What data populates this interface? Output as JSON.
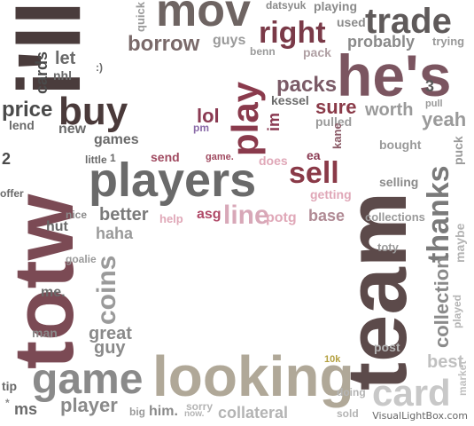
{
  "words": [
    {
      "id": "i-ll",
      "text": "i'll",
      "color": "#4a3c3c",
      "orientation": "vertical"
    },
    {
      "id": "totw",
      "text": "totw",
      "color": "#7b4a54",
      "orientation": "vertical"
    },
    {
      "id": "team",
      "text": "team",
      "color": "#5c4a4a",
      "orientation": "vertical"
    },
    {
      "id": "hes",
      "text": "he's",
      "color": "#7b5560",
      "orientation": "horizontal"
    },
    {
      "id": "mov",
      "text": "mov",
      "color": "#6e6462",
      "orientation": "horizontal"
    },
    {
      "id": "trade",
      "text": "trade",
      "color": "#5f5a5a",
      "orientation": "horizontal"
    },
    {
      "id": "right",
      "text": "right",
      "color": "#7a3a48",
      "orientation": "horizontal"
    },
    {
      "id": "borrow",
      "text": "borrow",
      "color": "#7a6a6a",
      "orientation": "horizontal"
    },
    {
      "id": "players",
      "text": "players",
      "color": "#6a6a6a",
      "orientation": "horizontal"
    },
    {
      "id": "looking",
      "text": "looking",
      "color": "#b0a898",
      "orientation": "horizontal"
    },
    {
      "id": "game",
      "text": "game",
      "color": "#8a8a8a",
      "orientation": "horizontal"
    },
    {
      "id": "card",
      "text": "card",
      "color": "#c8c8c8",
      "orientation": "horizontal"
    },
    {
      "id": "buy",
      "text": "buy",
      "color": "#4a3a3a",
      "orientation": "horizontal"
    },
    {
      "id": "price",
      "text": "price",
      "color": "#4a4a4a",
      "orientation": "horizontal"
    },
    {
      "id": "play",
      "text": "play",
      "color": "#8a3a4c",
      "orientation": "vertical"
    },
    {
      "id": "sell",
      "text": "sell",
      "color": "#8a3a48",
      "orientation": "horizontal"
    },
    {
      "id": "line",
      "text": "line",
      "color": "#d8a8b8",
      "orientation": "horizontal"
    },
    {
      "id": "thanks",
      "text": "thanks",
      "color": "#7a7a7a",
      "orientation": "vertical"
    },
    {
      "id": "coins",
      "text": "coins",
      "color": "#9a9a9a",
      "orientation": "vertical"
    },
    {
      "id": "collection",
      "text": "collection",
      "color": "#8a8a8a",
      "orientation": "vertical"
    },
    {
      "id": "packs",
      "text": "packs",
      "color": "#7a5a66",
      "orientation": "horizontal"
    },
    {
      "id": "sure",
      "text": "sure",
      "color": "#8a3a48",
      "orientation": "horizontal"
    },
    {
      "id": "worth",
      "text": "worth",
      "color": "#9a9a9a",
      "orientation": "horizontal"
    },
    {
      "id": "yeah",
      "text": "yeah",
      "color": "#9a9a9a",
      "orientation": "horizontal"
    },
    {
      "id": "probably",
      "text": "probably",
      "color": "#8a8a8a",
      "orientation": "horizontal"
    },
    {
      "id": "lol",
      "text": "lol",
      "color": "#8a3a52",
      "orientation": "horizontal"
    },
    {
      "id": "games",
      "text": "games",
      "color": "#6a6a6a",
      "orientation": "horizontal"
    },
    {
      "id": "better",
      "text": "better",
      "color": "#7a7a7a",
      "orientation": "horizontal"
    },
    {
      "id": "haha",
      "text": "haha",
      "color": "#9a9a9a",
      "orientation": "horizontal"
    },
    {
      "id": "great",
      "text": "great",
      "color": "#8a8a8a",
      "orientation": "horizontal"
    },
    {
      "id": "guy",
      "text": "guy",
      "color": "#8a8a8a",
      "orientation": "horizontal"
    },
    {
      "id": "player",
      "text": "player",
      "color": "#8a8a8a",
      "orientation": "horizontal"
    },
    {
      "id": "collateral",
      "text": "collateral",
      "color": "#b4b4b4",
      "orientation": "horizontal"
    },
    {
      "id": "best",
      "text": "best",
      "color": "#c0c0c0",
      "orientation": "horizontal"
    },
    {
      "id": "base",
      "text": "base",
      "color": "#b08a94",
      "orientation": "horizontal"
    },
    {
      "id": "potg",
      "text": "potg",
      "color": "#e0a8b8",
      "orientation": "horizontal"
    },
    {
      "id": "asg",
      "text": "asg",
      "color": "#b04a68",
      "orientation": "horizontal"
    },
    {
      "id": "cards",
      "text": "cards",
      "color": "#4a4a4a",
      "orientation": "vertical"
    },
    {
      "id": "let",
      "text": "let",
      "color": "#6a6a6a",
      "orientation": "horizontal"
    },
    {
      "id": "nhl",
      "text": "nhl",
      "color": "#6a6a6a",
      "orientation": "horizontal"
    },
    {
      "id": "new",
      "text": "new",
      "color": "#6a6a6a",
      "orientation": "horizontal"
    },
    {
      "id": "lend",
      "text": "lend",
      "color": "#6a6a6a",
      "orientation": "horizontal"
    },
    {
      "id": "guys",
      "text": "guys",
      "color": "#9a9a9a",
      "orientation": "horizontal"
    },
    {
      "id": "quick",
      "text": "quick",
      "color": "#9a9a9a",
      "orientation": "vertical"
    },
    {
      "id": "datsyuk",
      "text": "datsyuk",
      "color": "#8a8a8a",
      "orientation": "horizontal"
    },
    {
      "id": "playing",
      "text": "playing",
      "color": "#8a8a8a",
      "orientation": "horizontal"
    },
    {
      "id": "used",
      "text": "used",
      "color": "#8a8a8a",
      "orientation": "horizontal"
    },
    {
      "id": "benn",
      "text": "benn",
      "color": "#9a9a9a",
      "orientation": "horizontal"
    },
    {
      "id": "pack",
      "text": "pack",
      "color": "#b0a0a4",
      "orientation": "horizontal"
    },
    {
      "id": "trying",
      "text": "trying",
      "color": "#9a9a9a",
      "orientation": "horizontal"
    },
    {
      "id": "three",
      "text": "3",
      "color": "#5a5a5a",
      "orientation": "horizontal"
    },
    {
      "id": "pull",
      "text": "pull",
      "color": "#9a9a9a",
      "orientation": "horizontal"
    },
    {
      "id": "kessel",
      "text": "kessel",
      "color": "#6a6a6a",
      "orientation": "horizontal"
    },
    {
      "id": "im",
      "text": "im",
      "color": "#8a3a52",
      "orientation": "vertical"
    },
    {
      "id": "pulled",
      "text": "pulled",
      "color": "#9a9a9a",
      "orientation": "horizontal"
    },
    {
      "id": "kane",
      "text": "kane",
      "color": "#8a5a66",
      "orientation": "vertical"
    },
    {
      "id": "pm",
      "text": "pm",
      "color": "#8a6aa8",
      "orientation": "horizontal"
    },
    {
      "id": "send",
      "text": "send",
      "color": "#a04a60",
      "orientation": "horizontal"
    },
    {
      "id": "game-dot",
      "text": "game.",
      "color": "#a04a60",
      "orientation": "horizontal"
    },
    {
      "id": "does",
      "text": "does",
      "color": "#e0a8b8",
      "orientation": "horizontal"
    },
    {
      "id": "ea",
      "text": "ea",
      "color": "#8a3a52",
      "orientation": "horizontal"
    },
    {
      "id": "getting",
      "text": "getting",
      "color": "#e0a8b8",
      "orientation": "horizontal"
    },
    {
      "id": "help",
      "text": "help",
      "color": "#e0a8b8",
      "orientation": "horizontal"
    },
    {
      "id": "bought",
      "text": "bought",
      "color": "#9a9a9a",
      "orientation": "horizontal"
    },
    {
      "id": "selling",
      "text": "selling",
      "color": "#8a8a8a",
      "orientation": "horizontal"
    },
    {
      "id": "puck",
      "text": "puck",
      "color": "#9a9a9a",
      "orientation": "vertical"
    },
    {
      "id": "collections",
      "text": "collections",
      "color": "#9a9a9a",
      "orientation": "horizontal"
    },
    {
      "id": "toty",
      "text": "toty",
      "color": "#9a9a9a",
      "orientation": "horizontal"
    },
    {
      "id": "maybe",
      "text": "maybe",
      "color": "#b4b4b4",
      "orientation": "vertical"
    },
    {
      "id": "played",
      "text": "played",
      "color": "#b4b4b4",
      "orientation": "vertical"
    },
    {
      "id": "market",
      "text": "market",
      "color": "#c0c0c0",
      "orientation": "vertical"
    },
    {
      "id": "post",
      "text": "post",
      "color": "#b4b4b4",
      "orientation": "horizontal"
    },
    {
      "id": "ten-k",
      "text": "10k",
      "color": "#b4a040",
      "orientation": "horizontal"
    },
    {
      "id": "doing",
      "text": "doing",
      "color": "#b4b4b4",
      "orientation": "horizontal"
    },
    {
      "id": "sold",
      "text": "sold",
      "color": "#b4b4b4",
      "orientation": "horizontal"
    },
    {
      "id": "smile",
      "text": ":)",
      "color": "#6a6a6a",
      "orientation": "horizontal"
    },
    {
      "id": "little",
      "text": "little",
      "color": "#6a6a6a",
      "orientation": "horizontal"
    },
    {
      "id": "one",
      "text": "1",
      "color": "#6a6a6a",
      "orientation": "horizontal"
    },
    {
      "id": "two",
      "text": "2",
      "color": "#4a4a4a",
      "orientation": "horizontal"
    },
    {
      "id": "offer",
      "text": "offer",
      "color": "#6a6a6a",
      "orientation": "horizontal"
    },
    {
      "id": "nice",
      "text": "nice",
      "color": "#8a8a8a",
      "orientation": "horizontal"
    },
    {
      "id": "hut",
      "text": "hut",
      "color": "#6a6a6a",
      "orientation": "horizontal"
    },
    {
      "id": "goalie",
      "text": "goalie",
      "color": "#9a9a9a",
      "orientation": "horizontal"
    },
    {
      "id": "me",
      "text": "me.",
      "color": "#6a6a6a",
      "orientation": "horizontal"
    },
    {
      "id": "man",
      "text": "man",
      "color": "#8a8a8a",
      "orientation": "horizontal"
    },
    {
      "id": "tip",
      "text": "tip",
      "color": "#6a6a6a",
      "orientation": "horizontal"
    },
    {
      "id": "ms",
      "text": "ms",
      "color": "#6a6a6a",
      "orientation": "horizontal"
    },
    {
      "id": "star",
      "text": "*",
      "color": "#8a8a8a",
      "orientation": "horizontal"
    },
    {
      "id": "big",
      "text": "big",
      "color": "#9a9a9a",
      "orientation": "horizontal"
    },
    {
      "id": "him",
      "text": "him.",
      "color": "#8a8a8a",
      "orientation": "horizontal"
    },
    {
      "id": "sorry",
      "text": "sorry",
      "color": "#b4b4b4",
      "orientation": "horizontal"
    },
    {
      "id": "now",
      "text": "now.",
      "color": "#b4b4b4",
      "orientation": "horizontal"
    }
  ],
  "watermark": "VisualLightBox.com"
}
